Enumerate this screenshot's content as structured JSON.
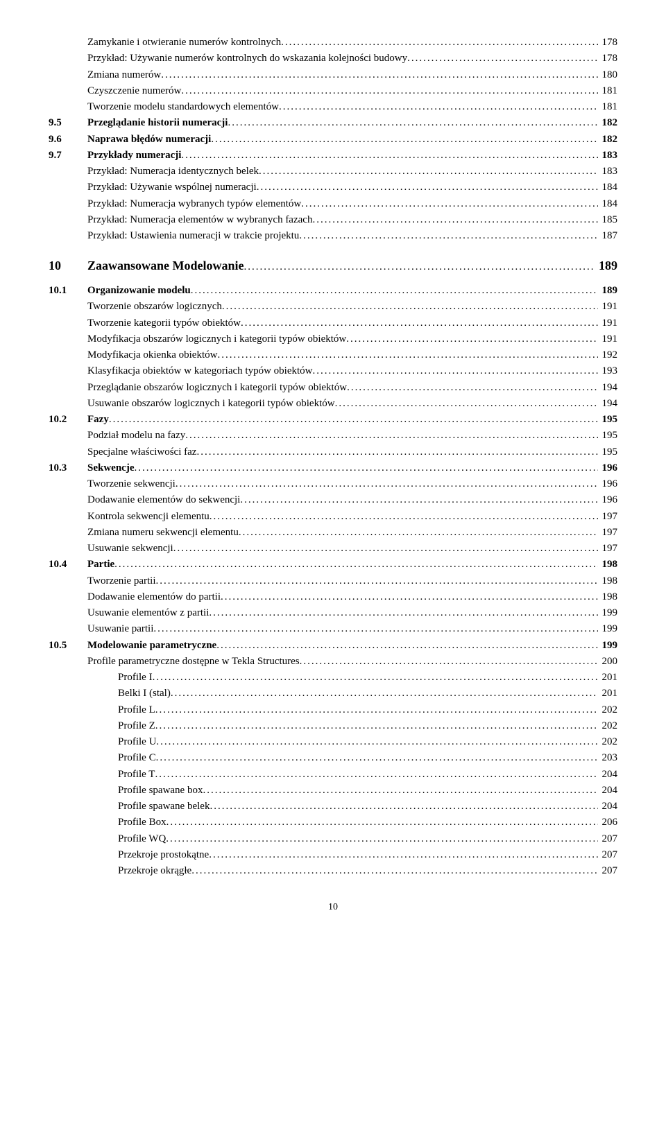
{
  "entries": [
    {
      "level": 2,
      "text": "Zamykanie i otwieranie numerów kontrolnych",
      "page": "178"
    },
    {
      "level": 2,
      "text": "Przykład: Używanie numerów kontrolnych do wskazania kolejności budowy",
      "page": "178"
    },
    {
      "level": 2,
      "text": "Zmiana numerów",
      "page": "180"
    },
    {
      "level": 2,
      "text": "Czyszczenie numerów",
      "page": "181"
    },
    {
      "level": 2,
      "text": "Tworzenie modelu standardowych elementów",
      "page": "181"
    },
    {
      "level": 1,
      "num": "9.5",
      "text": "Przeglądanie historii numeracji",
      "page": "182"
    },
    {
      "level": 1,
      "num": "9.6",
      "text": "Naprawa błędów numeracji",
      "page": "182"
    },
    {
      "level": 1,
      "num": "9.7",
      "text": "Przykłady numeracji",
      "page": "183"
    },
    {
      "level": 2,
      "text": "Przykład: Numeracja identycznych belek",
      "page": "183"
    },
    {
      "level": 2,
      "text": "Przykład: Używanie wspólnej numeracji",
      "page": "184"
    },
    {
      "level": 2,
      "text": "Przykład: Numeracja wybranych typów elementów",
      "page": "184"
    },
    {
      "level": 2,
      "text": "Przykład: Numeracja elementów w wybranych fazach",
      "page": "185"
    },
    {
      "level": 2,
      "text": "Przykład: Ustawienia numeracji w trakcie projektu",
      "page": "187"
    },
    {
      "level": 0,
      "num": "10",
      "text": "Zaawansowane Modelowanie",
      "page": "189"
    },
    {
      "level": 1,
      "num": "10.1",
      "text": "Organizowanie modelu",
      "page": "189"
    },
    {
      "level": 2,
      "text": "Tworzenie obszarów logicznych",
      "page": "191"
    },
    {
      "level": 2,
      "text": "Tworzenie kategorii typów obiektów",
      "page": "191"
    },
    {
      "level": 2,
      "text": "Modyfikacja obszarów logicznych i kategorii typów obiektów",
      "page": "191"
    },
    {
      "level": 2,
      "text": "Modyfikacja okienka obiektów",
      "page": "192"
    },
    {
      "level": 2,
      "text": "Klasyfikacja obiektów w kategoriach typów obiektów",
      "page": "193"
    },
    {
      "level": 2,
      "text": "Przeglądanie obszarów logicznych i kategorii typów obiektów",
      "page": "194"
    },
    {
      "level": 2,
      "text": "Usuwanie obszarów logicznych i kategorii typów obiektów",
      "page": "194"
    },
    {
      "level": 1,
      "num": "10.2",
      "text": "Fazy",
      "page": "195"
    },
    {
      "level": 2,
      "text": "Podział modelu na fazy",
      "page": "195"
    },
    {
      "level": 2,
      "text": "Specjalne właściwości faz",
      "page": "195"
    },
    {
      "level": 1,
      "num": "10.3",
      "text": "Sekwencje",
      "page": "196"
    },
    {
      "level": 2,
      "text": "Tworzenie sekwencji",
      "page": "196"
    },
    {
      "level": 2,
      "text": "Dodawanie elementów do sekwencji",
      "page": "196"
    },
    {
      "level": 2,
      "text": "Kontrola sekwencji elementu",
      "page": "197"
    },
    {
      "level": 2,
      "text": "Zmiana numeru sekwencji elementu",
      "page": "197"
    },
    {
      "level": 2,
      "text": "Usuwanie sekwencji",
      "page": "197"
    },
    {
      "level": 1,
      "num": "10.4",
      "text": "Partie",
      "page": "198"
    },
    {
      "level": 2,
      "text": "Tworzenie partii",
      "page": "198"
    },
    {
      "level": 2,
      "text": "Dodawanie elementów do partii",
      "page": "198"
    },
    {
      "level": 2,
      "text": "Usuwanie elementów z partii",
      "page": "199"
    },
    {
      "level": 2,
      "text": "Usuwanie partii",
      "page": "199"
    },
    {
      "level": 1,
      "num": "10.5",
      "text": "Modelowanie parametryczne",
      "page": "199"
    },
    {
      "level": 2,
      "text": "Profile parametryczne dostępne w Tekla Structures",
      "page": "200"
    },
    {
      "level": 3,
      "text": "Profile I",
      "page": "201"
    },
    {
      "level": 3,
      "text": "Belki I (stal)",
      "page": "201"
    },
    {
      "level": 3,
      "text": "Profile L",
      "page": "202"
    },
    {
      "level": 3,
      "text": "Profile Z",
      "page": "202"
    },
    {
      "level": 3,
      "text": "Profile U",
      "page": "202"
    },
    {
      "level": 3,
      "text": "Profile C",
      "page": "203"
    },
    {
      "level": 3,
      "text": "Profile T",
      "page": "204"
    },
    {
      "level": 3,
      "text": "Profile spawane box",
      "page": "204"
    },
    {
      "level": 3,
      "text": "Profile spawane belek",
      "page": "204"
    },
    {
      "level": 3,
      "text": "Profile Box",
      "page": "206"
    },
    {
      "level": 3,
      "text": "Profile WQ",
      "page": "207"
    },
    {
      "level": 3,
      "text": "Przekroje prostokątne",
      "page": "207"
    },
    {
      "level": 3,
      "text": "Przekroje okrągłe",
      "page": "207"
    }
  ],
  "footer": "10",
  "dots": "...................................................................................................................................................................."
}
